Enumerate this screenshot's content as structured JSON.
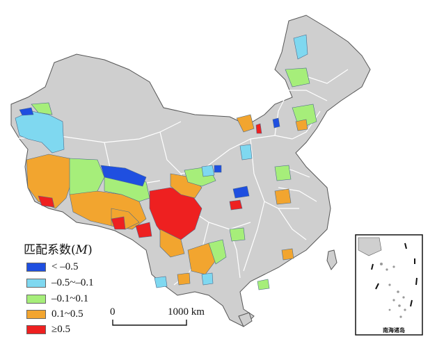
{
  "legend": {
    "title": "匹配系数",
    "title_symbol": "M",
    "items": [
      {
        "label": "< –0.5",
        "color": "#1f4fe0"
      },
      {
        "label": "–0.5~–0.1",
        "color": "#7fd8f0"
      },
      {
        "label": "–0.1~0.1",
        "color": "#a6ee7a"
      },
      {
        "label": "0.1~0.5",
        "color": "#f2a52f"
      },
      {
        "label": "≥0.5",
        "color": "#ee2020"
      }
    ]
  },
  "scale_bar": {
    "start_label": "0",
    "end_label": "1000 km"
  },
  "inset": {
    "label": "南海诸岛"
  },
  "colors": {
    "land": "#cfcfcf",
    "border": "#ffffff",
    "outline": "#333333"
  }
}
